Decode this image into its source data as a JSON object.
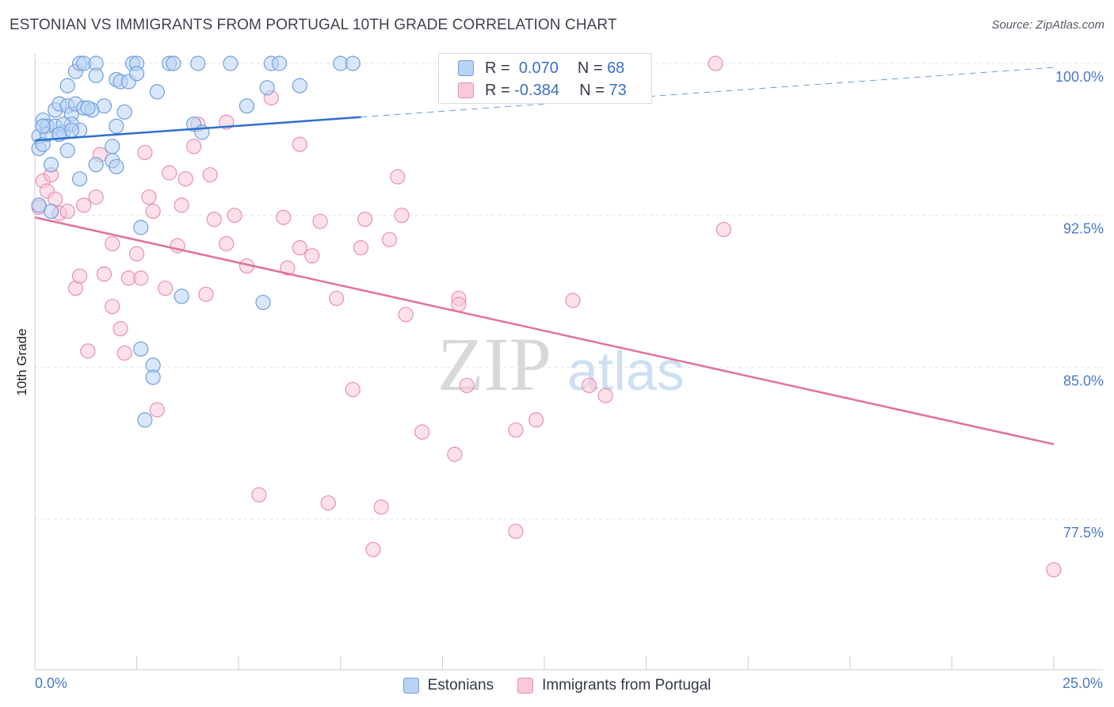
{
  "header": {
    "title": "ESTONIAN VS IMMIGRANTS FROM PORTUGAL 10TH GRADE CORRELATION CHART",
    "source": "Source: ZipAtlas.com"
  },
  "legend_top": {
    "rows": [
      {
        "r_label": "R =",
        "r_value": "0.070",
        "n_label": "N =",
        "n_value": "68"
      },
      {
        "r_label": "R =",
        "r_value": "-0.384",
        "n_label": "N =",
        "n_value": "73"
      }
    ]
  },
  "legend_bottom": {
    "items": [
      {
        "label": "Estonians"
      },
      {
        "label": "Immigrants from Portugal"
      }
    ]
  },
  "axes": {
    "x_min_label": "0.0%",
    "x_max_label": "25.0%",
    "y_title": "10th Grade"
  },
  "watermark": {
    "zip": "ZIP",
    "atlas": "atlas"
  },
  "colors": {
    "blue_fill": "#b9d3f4",
    "blue_stroke": "#6f9fde",
    "blue_line": "#2f6fd1",
    "pink_fill": "#f9c9d8",
    "pink_stroke": "#ea8fae",
    "pink_line": "#e2719b",
    "tick_label": "#4a79c8",
    "grid": "#e3e6eb"
  },
  "chart_data": {
    "type": "scatter",
    "title": "ESTONIAN VS IMMIGRANTS FROM PORTUGAL 10TH GRADE CORRELATION CHART",
    "xlabel": "",
    "ylabel": "10th Grade",
    "xlim": [
      0,
      25
    ],
    "ylim": [
      70.5,
      101.2
    ],
    "x_ticks": [
      0,
      25
    ],
    "x_tick_labels": [
      "0.0%",
      "25.0%"
    ],
    "y_ticks": [
      77.5,
      85.0,
      92.5,
      100.0
    ],
    "y_tick_labels": [
      "77.5%",
      "85.0%",
      "92.5%",
      "100.0%"
    ],
    "grid": "horizontal dashed",
    "legend_position": "top-center",
    "series": [
      {
        "name": "Estonians",
        "color": "#6f9fde",
        "r": 0.07,
        "n": 68,
        "trend": {
          "x": [
            0,
            8.0
          ],
          "y": [
            96.2,
            97.35
          ]
        },
        "trend_extension": {
          "x": [
            8.0,
            25
          ],
          "y": [
            97.35,
            99.8
          ]
        },
        "points": [
          [
            0.1,
            95.8
          ],
          [
            0.1,
            96.4
          ],
          [
            0.2,
            97.2
          ],
          [
            0.2,
            96.0
          ],
          [
            0.3,
            96.9
          ],
          [
            0.3,
            96.5
          ],
          [
            0.4,
            95.0
          ],
          [
            0.4,
            92.7
          ],
          [
            0.5,
            97.7
          ],
          [
            0.5,
            96.9
          ],
          [
            0.6,
            98.0
          ],
          [
            0.6,
            96.5
          ],
          [
            0.7,
            96.6
          ],
          [
            0.8,
            98.9
          ],
          [
            0.8,
            97.9
          ],
          [
            0.8,
            95.7
          ],
          [
            0.9,
            97.5
          ],
          [
            0.9,
            97.0
          ],
          [
            1.0,
            99.6
          ],
          [
            1.0,
            98.0
          ],
          [
            1.1,
            96.7
          ],
          [
            1.1,
            100.0
          ],
          [
            1.2,
            100.0
          ],
          [
            1.2,
            97.8
          ],
          [
            1.4,
            97.7
          ],
          [
            1.5,
            100.0
          ],
          [
            1.5,
            99.4
          ],
          [
            1.5,
            95.0
          ],
          [
            1.7,
            97.9
          ],
          [
            1.9,
            95.9
          ],
          [
            1.9,
            95.2
          ],
          [
            2.0,
            96.9
          ],
          [
            2.0,
            99.2
          ],
          [
            2.0,
            94.9
          ],
          [
            2.1,
            99.1
          ],
          [
            2.2,
            97.6
          ],
          [
            2.3,
            99.1
          ],
          [
            2.4,
            100.0
          ],
          [
            2.5,
            100.0
          ],
          [
            2.5,
            99.5
          ],
          [
            2.6,
            85.9
          ],
          [
            2.6,
            91.9
          ],
          [
            2.7,
            82.4
          ],
          [
            2.9,
            85.1
          ],
          [
            2.9,
            84.5
          ],
          [
            3.0,
            98.6
          ],
          [
            3.3,
            100.0
          ],
          [
            3.4,
            100.0
          ],
          [
            3.6,
            88.5
          ],
          [
            3.9,
            97.0
          ],
          [
            4.1,
            96.6
          ],
          [
            4.0,
            100.0
          ],
          [
            4.8,
            100.0
          ],
          [
            5.2,
            97.9
          ],
          [
            5.6,
            88.2
          ],
          [
            5.7,
            98.8
          ],
          [
            5.8,
            100.0
          ],
          [
            6.0,
            100.0
          ],
          [
            6.5,
            98.9
          ],
          [
            7.5,
            100.0
          ],
          [
            7.8,
            100.0
          ],
          [
            1.1,
            94.3
          ],
          [
            0.7,
            97.0
          ],
          [
            1.3,
            97.8
          ],
          [
            0.9,
            96.7
          ],
          [
            0.2,
            96.9
          ],
          [
            0.6,
            96.5
          ],
          [
            0.1,
            93.0
          ]
        ]
      },
      {
        "name": "Immigrants from Portugal",
        "color": "#ea8fae",
        "r": -0.384,
        "n": 73,
        "trend": {
          "x": [
            0,
            25
          ],
          "y": [
            92.4,
            81.2
          ]
        },
        "points": [
          [
            0.1,
            92.9
          ],
          [
            0.2,
            94.2
          ],
          [
            0.3,
            93.7
          ],
          [
            0.4,
            94.5
          ],
          [
            0.5,
            93.3
          ],
          [
            0.6,
            92.6
          ],
          [
            0.8,
            92.7
          ],
          [
            1.0,
            88.9
          ],
          [
            1.1,
            89.5
          ],
          [
            1.2,
            93.0
          ],
          [
            1.3,
            85.8
          ],
          [
            1.5,
            93.4
          ],
          [
            1.6,
            95.5
          ],
          [
            1.7,
            89.6
          ],
          [
            1.9,
            91.1
          ],
          [
            1.9,
            88.0
          ],
          [
            2.1,
            86.9
          ],
          [
            2.2,
            85.7
          ],
          [
            2.3,
            89.4
          ],
          [
            2.5,
            90.6
          ],
          [
            2.6,
            89.4
          ],
          [
            2.7,
            95.6
          ],
          [
            2.8,
            93.4
          ],
          [
            2.9,
            92.7
          ],
          [
            3.0,
            82.9
          ],
          [
            3.2,
            88.9
          ],
          [
            3.3,
            94.6
          ],
          [
            3.5,
            91.0
          ],
          [
            3.6,
            93.0
          ],
          [
            3.7,
            94.3
          ],
          [
            3.9,
            95.9
          ],
          [
            4.0,
            97.0
          ],
          [
            4.2,
            88.6
          ],
          [
            4.3,
            94.5
          ],
          [
            4.4,
            92.3
          ],
          [
            4.7,
            97.1
          ],
          [
            4.7,
            91.1
          ],
          [
            4.9,
            92.5
          ],
          [
            5.2,
            90.0
          ],
          [
            5.5,
            78.7
          ],
          [
            5.8,
            98.3
          ],
          [
            6.1,
            92.4
          ],
          [
            6.2,
            89.9
          ],
          [
            6.5,
            96.0
          ],
          [
            6.5,
            90.9
          ],
          [
            6.8,
            90.5
          ],
          [
            7.0,
            92.2
          ],
          [
            7.2,
            78.3
          ],
          [
            7.4,
            88.4
          ],
          [
            7.8,
            83.9
          ],
          [
            8.0,
            90.9
          ],
          [
            8.1,
            92.3
          ],
          [
            8.3,
            76.0
          ],
          [
            8.5,
            78.1
          ],
          [
            8.7,
            91.3
          ],
          [
            8.9,
            94.4
          ],
          [
            9.0,
            92.5
          ],
          [
            9.1,
            87.6
          ],
          [
            9.5,
            81.8
          ],
          [
            10.3,
            80.7
          ],
          [
            10.4,
            88.4
          ],
          [
            10.4,
            88.1
          ],
          [
            10.6,
            84.1
          ],
          [
            11.8,
            81.9
          ],
          [
            11.8,
            76.9
          ],
          [
            12.3,
            82.4
          ],
          [
            13.2,
            88.3
          ],
          [
            13.6,
            84.1
          ],
          [
            13.8,
            100.0
          ],
          [
            14.0,
            83.6
          ],
          [
            16.7,
            100.0
          ],
          [
            16.9,
            91.8
          ],
          [
            25.0,
            75.0
          ]
        ]
      }
    ]
  }
}
